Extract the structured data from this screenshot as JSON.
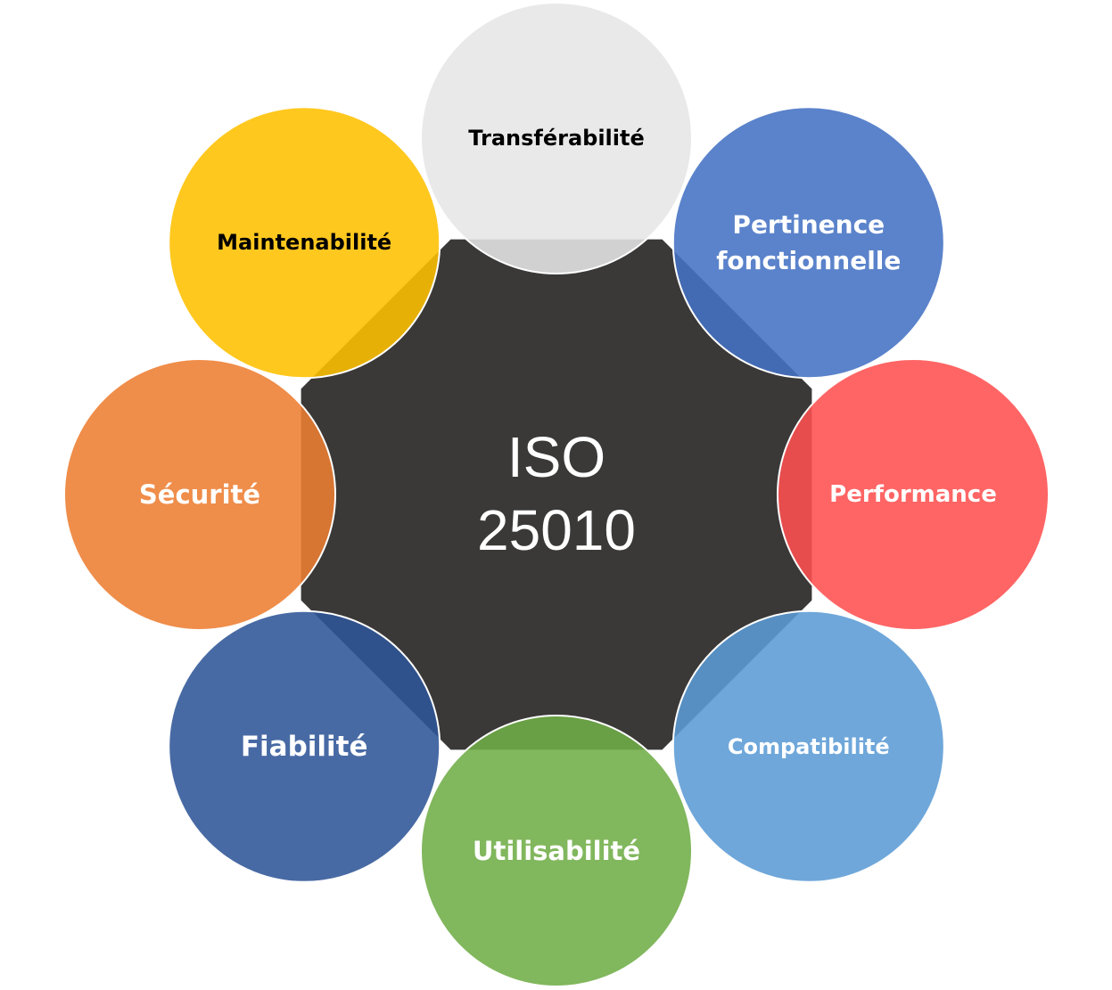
{
  "center": {
    "lines": [
      "ISO",
      "25010"
    ],
    "color": "#3a3938"
  },
  "nodes": [
    {
      "id": "transferabilite",
      "lines": [
        "Transférabilité"
      ],
      "color": "#e6e6e6",
      "text_color": "#000000"
    },
    {
      "id": "pertinence-fonctionnelle",
      "lines": [
        "Pertinence",
        "fonctionnelle"
      ],
      "color": "#4472c4",
      "text_color": "#ffffff"
    },
    {
      "id": "performance",
      "lines": [
        "Performance"
      ],
      "color": "#ff5050",
      "text_color": "#ffffff"
    },
    {
      "id": "compatibilite",
      "lines": [
        "Compatibilité"
      ],
      "color": "#5b9bd5",
      "text_color": "#ffffff"
    },
    {
      "id": "utilisabilite",
      "lines": [
        "Utilisabilité"
      ],
      "color": "#70ad47",
      "text_color": "#ffffff"
    },
    {
      "id": "fiabilite",
      "lines": [
        "Fiabilité"
      ],
      "color": "#2f5597",
      "text_color": "#ffffff"
    },
    {
      "id": "securite",
      "lines": [
        "Sécurité"
      ],
      "color": "#ed7d31",
      "text_color": "#ffffff"
    },
    {
      "id": "maintenabilite",
      "lines": [
        "Maintenabilité"
      ],
      "color": "#ffc000",
      "text_color": "#000000"
    }
  ]
}
